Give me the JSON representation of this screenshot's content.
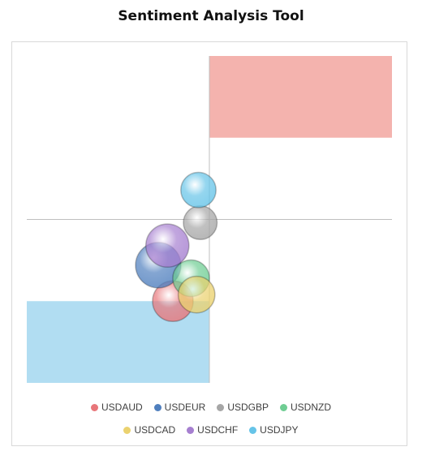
{
  "chart_data": {
    "type": "bubble",
    "title": "Sentiment Analysis Tool",
    "xlim": [
      -1,
      1
    ],
    "ylim": [
      -1,
      1
    ],
    "grid": false,
    "legend_position": "bottom",
    "zones": [
      {
        "x": [
          0,
          1
        ],
        "y": [
          0.5,
          1
        ],
        "color": "#f4b3ae"
      },
      {
        "x": [
          -1,
          0
        ],
        "y": [
          -1,
          -0.5
        ],
        "color": "#b1ddf2"
      }
    ],
    "series": [
      {
        "name": "USDAUD",
        "x": -0.2,
        "y": -0.5,
        "size": 0.8,
        "color": "#e8767a"
      },
      {
        "name": "USDEUR",
        "x": -0.28,
        "y": -0.28,
        "size": 1.0,
        "color": "#4f7fbe"
      },
      {
        "name": "USDGBP",
        "x": -0.05,
        "y": -0.02,
        "size": 0.55,
        "color": "#a6a6a6"
      },
      {
        "name": "USDNZD",
        "x": -0.1,
        "y": -0.36,
        "size": 0.65,
        "color": "#6fcd93"
      },
      {
        "name": "USDCAD",
        "x": -0.07,
        "y": -0.46,
        "size": 0.65,
        "color": "#ebd26f"
      },
      {
        "name": "USDCHF",
        "x": -0.23,
        "y": -0.16,
        "size": 0.9,
        "color": "#a67fd0"
      },
      {
        "name": "USDJPY",
        "x": -0.06,
        "y": 0.18,
        "size": 0.6,
        "color": "#66c4e8"
      }
    ]
  }
}
